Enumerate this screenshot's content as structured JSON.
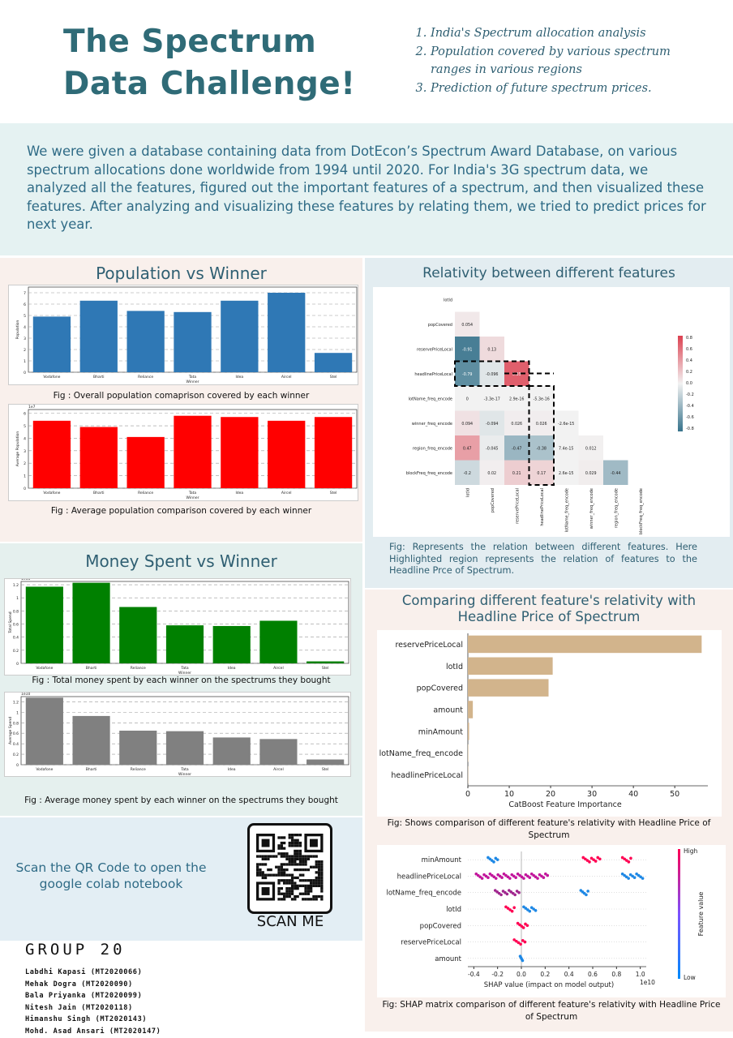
{
  "header": {
    "title_line1": "The Spectrum",
    "title_line2": "Data Challenge!",
    "goals": [
      "India's Spectrum allocation analysis",
      "Population covered by various spectrum ranges in various regions",
      "Prediction of future spectrum prices."
    ]
  },
  "intro": "We were given a database containing data from DotEcon’s Spectrum Award Database, on various spectrum allocations done worldwide from 1994 until 2020. For India's 3G spectrum data, we analyzed all the features, figured out the important features of a spectrum, and then visualized these features. After analyzing and visualizing these features by relating them, we tried to predict prices for next year.",
  "population": {
    "title": "Population vs Winner",
    "cap1": "Fig : Overall population comaprison covered by each winner",
    "cap2": "Fig : Average population comparison covered by each winner"
  },
  "money": {
    "title": "Money Spent vs Winner",
    "cap1": "Fig : Total money spent by each winner on the spectrums they bought",
    "cap2": "Fig : Average money spent by each winner on the spectrums they bought"
  },
  "relativity": {
    "title": "Relativity between different features",
    "cap": "Fig: Represents the relation between different features. Here Highlighted region represents the relation of features to the Headline Prce of Spectrum."
  },
  "comparing": {
    "title": "Comparing different feature's relativity with Headline Price of Spectrum",
    "cap1": "Fig: Shows comparison of different feature's relativity with Headline Price of Spectrum",
    "cap2": "Fig: SHAP matrix comparison of different feature's relativity with Headline Price of Spectrum"
  },
  "qr": {
    "text": "Scan the QR Code to open the google colab notebook",
    "scan": "SCAN ME"
  },
  "group": {
    "name": "GROUP 20",
    "members": [
      "Labdhi Kapasi (MT2020066)",
      "Mehak Dogra (MT2020090)",
      "Bala Priyanka (MT2020099)",
      "Nitesh Jain (MT2020118)",
      "Himanshu Singh (MT2020143)",
      "Mohd. Asad Ansari (MT2020147)"
    ]
  },
  "chart_data": [
    {
      "type": "bar",
      "id": "pop_total",
      "categories": [
        "Vodafone",
        "Bharti",
        "Reliance",
        "Tata",
        "Idea",
        "Aircel",
        "Stel"
      ],
      "values": [
        4.9,
        6.3,
        5.4,
        5.3,
        6.3,
        7.0,
        1.7
      ],
      "xlabel": "Winner",
      "ylabel": "Population",
      "ylim": [
        0,
        7.5
      ],
      "yticks": [
        0,
        1,
        2,
        3,
        4,
        5,
        6,
        7
      ],
      "color": "#2f78b5"
    },
    {
      "type": "bar",
      "id": "pop_avg",
      "categories": [
        "Vodafone",
        "Bharti",
        "Reliance",
        "Tata",
        "Idea",
        "Aircel",
        "Stel"
      ],
      "values": [
        5.4,
        4.9,
        4.1,
        5.8,
        5.7,
        5.4,
        5.7
      ],
      "xlabel": "Winner",
      "ylabel": "Average Population",
      "ylim": [
        0,
        6.3
      ],
      "yticks": [
        0,
        1,
        2,
        3,
        4,
        5,
        6
      ],
      "scale_label": "1e7",
      "color": "#ff0000"
    },
    {
      "type": "bar",
      "id": "money_total",
      "categories": [
        "Vodafone",
        "Bharti",
        "Reliance",
        "Tata",
        "Idea",
        "Aircel",
        "Stel"
      ],
      "values": [
        1.17,
        1.23,
        0.86,
        0.58,
        0.57,
        0.65,
        0.03
      ],
      "xlabel": "Winner",
      "ylabel": "Total Spend",
      "ylim": [
        0,
        1.25
      ],
      "yticks": [
        0.0,
        0.2,
        0.4,
        0.6,
        0.8,
        1.0,
        1.2
      ],
      "scale_label": "1e11",
      "color": "#008000"
    },
    {
      "type": "bar",
      "id": "money_avg",
      "categories": [
        "Vodafone",
        "Bharti",
        "Reliance",
        "Tata",
        "Idea",
        "Aircel",
        "Stel"
      ],
      "values": [
        1.28,
        0.93,
        0.65,
        0.64,
        0.52,
        0.49,
        0.1
      ],
      "xlabel": "Winner",
      "ylabel": "Average Spend",
      "ylim": [
        0,
        1.3
      ],
      "yticks": [
        0.0,
        0.2,
        0.4,
        0.6,
        0.8,
        1.0,
        1.2
      ],
      "scale_label": "1e10",
      "color": "#808080"
    },
    {
      "type": "heatmap",
      "id": "corr",
      "labels": [
        "lotId",
        "popCovered",
        "reservePriceLocal",
        "headlinePriceLocal",
        "lotName_freq_encode",
        "winner_freq_encode",
        "region_freq_encode",
        "blockFreq_freq_encode"
      ],
      "cells": [
        [
          "0.054"
        ],
        [
          "-0.91",
          "0.13"
        ],
        [
          "-0.79",
          "-0.096",
          "0.83"
        ],
        [
          "0",
          "-3.3e-17",
          "2.9e-16",
          "-5.3e-16"
        ],
        [
          "0.094",
          "-0.094",
          "0.026",
          "0.026",
          "-2.6e-15"
        ],
        [
          "0.47",
          "-0.045",
          "-0.47",
          "-0.38",
          "7.4e-15",
          "0.012"
        ],
        [
          "-0.2",
          "0.02",
          "0.21",
          "0.17",
          "2.6e-15",
          "0.029",
          "-0.44"
        ]
      ],
      "values": [
        [
          0.054
        ],
        [
          -0.91,
          0.13
        ],
        [
          -0.79,
          -0.096,
          0.83
        ],
        [
          0,
          0,
          0,
          0
        ],
        [
          0.094,
          -0.094,
          0.026,
          0.026,
          0
        ],
        [
          0.47,
          -0.045,
          -0.47,
          -0.38,
          0,
          0.012
        ],
        [
          -0.2,
          0.02,
          0.21,
          0.17,
          0,
          0.029,
          -0.44
        ]
      ],
      "colorbar_ticks": [
        "0.8",
        "0.6",
        "0.4",
        "0.2",
        "0.0",
        "-0.2",
        "-0.4",
        "-0.6",
        "-0.8"
      ]
    },
    {
      "type": "bar",
      "id": "catboost",
      "orientation": "horizontal",
      "categories": [
        "reservePriceLocal",
        "lotId",
        "popCovered",
        "amount",
        "minAmount",
        "lotName_freq_encode",
        "headlinePriceLocal"
      ],
      "values": [
        56.5,
        20.5,
        19.5,
        1.2,
        0.3,
        0.1,
        0.05
      ],
      "xlabel": "CatBoost Feature Importance",
      "xlim": [
        0,
        58
      ],
      "xticks": [
        0,
        10,
        20,
        30,
        40,
        50
      ],
      "color": "#d2b48c"
    },
    {
      "type": "scatter",
      "id": "shap",
      "categories": [
        "minAmount",
        "headlinePriceLocal",
        "lotName_freq_encode",
        "lotId",
        "popCovered",
        "reservePriceLocal",
        "amount"
      ],
      "xlabel": "SHAP value (impact on model output)",
      "xticks": [
        "-0.4",
        "-0.2",
        "0.0",
        "0.2",
        "0.4",
        "0.6",
        "0.8",
        "1.0"
      ],
      "xlim": [
        -0.45,
        1.05
      ],
      "scale_label": "1e10",
      "colorbar": {
        "high": "High",
        "low": "Low",
        "label": "Feature value"
      }
    }
  ]
}
